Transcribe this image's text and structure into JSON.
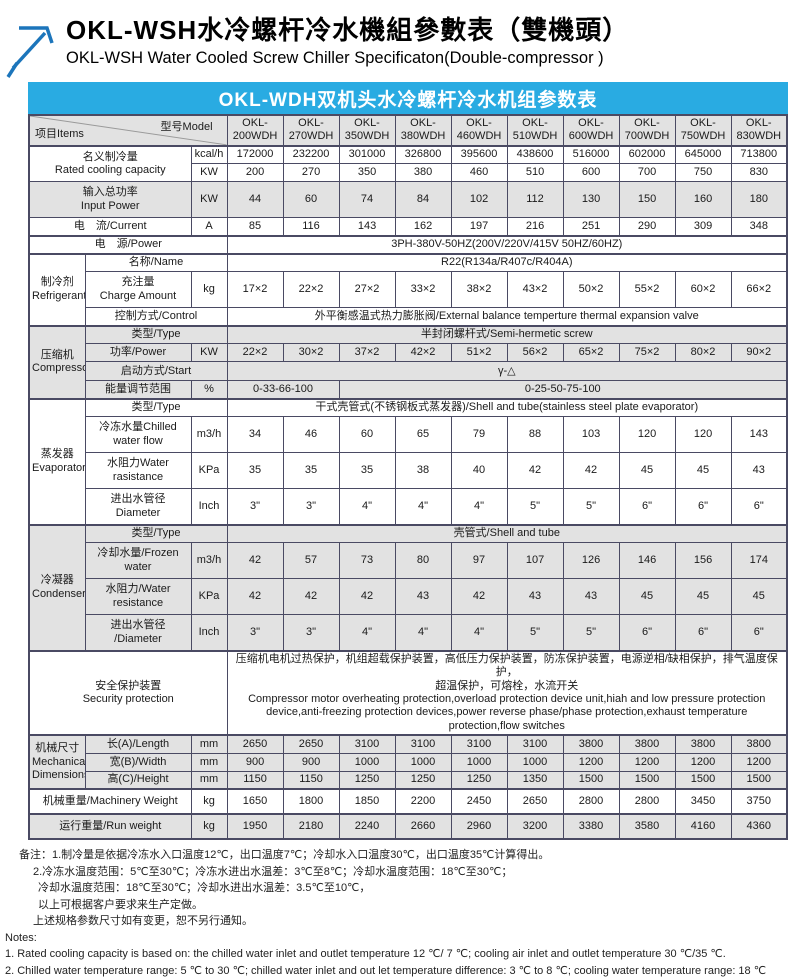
{
  "header": {
    "title_zh": "OKL-WSH水冷螺杆冷水機組參數表（雙機頭）",
    "title_en": "OKL-WSH Water Cooled Screw Chiller Specificaton(Double-compressor )",
    "logo_icon": "arrow-up-right-icon"
  },
  "banner": {
    "text": "OKL-WDH双机头水冷螺杆冷水机组参数表",
    "bg": "#29abe2"
  },
  "colors": {
    "accent": "#29abe2",
    "logo_blue": "#1c75bb",
    "grid": "#4a4a63",
    "shade": "#e2e2e2"
  },
  "table": {
    "corner": {
      "items": "项目Items",
      "model": "型号Model"
    },
    "model_prefix": "OKL-",
    "models": [
      "200WDH",
      "270WDH",
      "350WDH",
      "380WDH",
      "460WDH",
      "510WDH",
      "600WDH",
      "700WDH",
      "750WDH",
      "830WDH"
    ],
    "rows": [
      {
        "name": "rated-cooling-capacity-kcalh",
        "shaded": false,
        "thick": true,
        "h": 18,
        "cells": [
          {
            "t": "名义制冷量\nRated cooling capacity",
            "k": "label",
            "cs": 2,
            "rs": 2
          },
          {
            "t": "kcal/h",
            "k": "unit"
          }
        ],
        "vals": [
          "172000",
          "232200",
          "301000",
          "326800",
          "395600",
          "438600",
          "516000",
          "602000",
          "645000",
          "713800"
        ]
      },
      {
        "name": "rated-cooling-capacity-kw",
        "shaded": false,
        "h": 18,
        "cells": [
          {
            "t": "KW",
            "k": "unit"
          }
        ],
        "vals": [
          "200",
          "270",
          "350",
          "380",
          "460",
          "510",
          "600",
          "700",
          "750",
          "830"
        ]
      },
      {
        "name": "input-power",
        "shaded": true,
        "h": 36,
        "cells": [
          {
            "t": "输入总功率\nInput Power",
            "k": "label",
            "cs": 2
          },
          {
            "t": "KW",
            "k": "unit"
          }
        ],
        "vals": [
          "44",
          "60",
          "74",
          "84",
          "102",
          "112",
          "130",
          "150",
          "160",
          "180"
        ]
      },
      {
        "name": "current",
        "shaded": false,
        "h": 18,
        "cells": [
          {
            "t": "电　流/Current",
            "k": "label",
            "cs": 2
          },
          {
            "t": "A",
            "k": "unit"
          }
        ],
        "vals": [
          "85",
          "116",
          "143",
          "162",
          "197",
          "216",
          "251",
          "290",
          "309",
          "348"
        ]
      },
      {
        "name": "power-supply",
        "shaded": false,
        "thick": true,
        "h": 18,
        "cells": [
          {
            "t": "电　源/Power",
            "k": "label",
            "cs": 3
          },
          {
            "t": "3PH-380V-50HZ(200V/220V/415V  50HZ/60HZ)",
            "k": "wide",
            "cs": 10
          }
        ]
      },
      {
        "name": "refrigerant-name",
        "shaded": false,
        "thick": true,
        "h": 18,
        "cells": [
          {
            "t": "制冷剂\nRefrigerant",
            "k": "group",
            "rs": 3
          },
          {
            "t": "名称/Name",
            "k": "label",
            "cs": 2
          },
          {
            "t": "R22(R134a/R407c/R404A)",
            "k": "wide",
            "cs": 10
          }
        ]
      },
      {
        "name": "charge-amount",
        "shaded": false,
        "h": 36,
        "cells": [
          {
            "t": "充注量\nCharge Amount",
            "k": "label"
          },
          {
            "t": "kg",
            "k": "unit"
          }
        ],
        "vals": [
          "17×2",
          "22×2",
          "27×2",
          "33×2",
          "38×2",
          "43×2",
          "50×2",
          "55×2",
          "60×2",
          "66×2"
        ]
      },
      {
        "name": "control",
        "shaded": false,
        "h": 18,
        "cells": [
          {
            "t": "控制方式/Control",
            "k": "label",
            "cs": 2
          },
          {
            "t": "外平衡感温式热力膨胀阀/External balance temperture thermal expansion valve",
            "k": "wide",
            "cs": 10
          }
        ]
      },
      {
        "name": "compressor-type",
        "shaded": true,
        "thick": true,
        "h": 18,
        "cells": [
          {
            "t": "压缩机\nCompressor",
            "k": "group",
            "rs": 4
          },
          {
            "t": "类型/Type",
            "k": "label",
            "cs": 2
          },
          {
            "t": "半封闭螺杆式/Semi-hermetic screw",
            "k": "wide",
            "cs": 10
          }
        ]
      },
      {
        "name": "compressor-power",
        "shaded": true,
        "h": 18,
        "cells": [
          {
            "t": "功率/Power",
            "k": "label"
          },
          {
            "t": "KW",
            "k": "unit"
          }
        ],
        "vals": [
          "22×2",
          "30×2",
          "37×2",
          "42×2",
          "51×2",
          "56×2",
          "65×2",
          "75×2",
          "80×2",
          "90×2"
        ]
      },
      {
        "name": "start-mode",
        "shaded": true,
        "h": 19,
        "cells": [
          {
            "t": "启动方式/Start",
            "k": "label",
            "cs": 2
          },
          {
            "t": "γ-△",
            "k": "wide",
            "cs": 10
          }
        ]
      },
      {
        "name": "energy-regulation",
        "shaded": true,
        "h": 18,
        "cells": [
          {
            "t": "能量调节范围",
            "k": "label"
          },
          {
            "t": "%",
            "k": "unit"
          },
          {
            "t": "0-33-66-100",
            "k": "wide",
            "cs": 2
          },
          {
            "t": "0-25-50-75-100",
            "k": "wide",
            "cs": 8
          }
        ]
      },
      {
        "name": "evaporator-type",
        "shaded": false,
        "thick": true,
        "h": 18,
        "cells": [
          {
            "t": "蒸发器\nEvaporator",
            "k": "group",
            "rs": 4
          },
          {
            "t": "类型/Type",
            "k": "label",
            "cs": 2
          },
          {
            "t": "干式壳管式(不锈钢板式蒸发器)/Shell and tube(stainless steel plate evaporator)",
            "k": "wide",
            "cs": 10
          }
        ]
      },
      {
        "name": "chilled-water-flow",
        "shaded": false,
        "h": 36,
        "cells": [
          {
            "t": "冷冻水量Chilled\nwater flow",
            "k": "label"
          },
          {
            "t": "m3/h",
            "k": "unit"
          }
        ],
        "vals": [
          "34",
          "46",
          "60",
          "65",
          "79",
          "88",
          "103",
          "120",
          "120",
          "143"
        ]
      },
      {
        "name": "evap-water-resistance",
        "shaded": false,
        "h": 36,
        "cells": [
          {
            "t": "水阻力Water\nrasistance",
            "k": "label"
          },
          {
            "t": "KPa",
            "k": "unit"
          }
        ],
        "vals": [
          "35",
          "35",
          "35",
          "38",
          "40",
          "42",
          "42",
          "45",
          "45",
          "43"
        ]
      },
      {
        "name": "evap-pipe-diameter",
        "shaded": false,
        "h": 36,
        "cells": [
          {
            "t": "进出水管径\nDiameter",
            "k": "label"
          },
          {
            "t": "Inch",
            "k": "unit"
          }
        ],
        "vals": [
          "3\"",
          "3\"",
          "4\"",
          "4\"",
          "4\"",
          "5\"",
          "5\"",
          "6\"",
          "6\"",
          "6\""
        ]
      },
      {
        "name": "condenser-type",
        "shaded": true,
        "thick": true,
        "h": 18,
        "cells": [
          {
            "t": "冷凝器\nCondenser",
            "k": "group",
            "rs": 4
          },
          {
            "t": "类型/Type",
            "k": "label",
            "cs": 2
          },
          {
            "t": "壳管式/Shell and tube",
            "k": "wide",
            "cs": 10
          }
        ]
      },
      {
        "name": "cooling-water-flow",
        "shaded": true,
        "h": 36,
        "cells": [
          {
            "t": "冷却水量/Frozen\nwater",
            "k": "label"
          },
          {
            "t": "m3/h",
            "k": "unit"
          }
        ],
        "vals": [
          "42",
          "57",
          "73",
          "80",
          "97",
          "107",
          "126",
          "146",
          "156",
          "174"
        ]
      },
      {
        "name": "cond-water-resistance",
        "shaded": true,
        "h": 36,
        "cells": [
          {
            "t": "水阻力/Water\nresistance",
            "k": "label"
          },
          {
            "t": "KPa",
            "k": "unit"
          }
        ],
        "vals": [
          "42",
          "42",
          "42",
          "43",
          "42",
          "43",
          "43",
          "45",
          "45",
          "45"
        ]
      },
      {
        "name": "cond-pipe-diameter",
        "shaded": true,
        "h": 36,
        "cells": [
          {
            "t": "进出水管径\n/Diameter",
            "k": "label"
          },
          {
            "t": "Inch",
            "k": "unit"
          }
        ],
        "vals": [
          "3\"",
          "3\"",
          "4\"",
          "4\"",
          "4\"",
          "5\"",
          "5\"",
          "6\"",
          "6\"",
          "6\""
        ]
      },
      {
        "name": "security-protection",
        "shaded": false,
        "thick": true,
        "h": 82,
        "cells": [
          {
            "t": "安全保护装置\nSecurity protection",
            "k": "label",
            "cs": 3
          },
          {
            "t": "压缩机电机过热保护，机组超载保护装置，高低压力保护装置，防冻保护装置，电源逆相/缺相保护，排气温度保护，\n超温保护，可熔栓，水流开关\nCompressor motor overheating protection,overload protection device unit,hiah and low pressure protection device,anti-freezing protection devices,power reverse phase/phase protection,exhaust temperature protection,flow switches",
            "k": "security",
            "cs": 10
          }
        ]
      },
      {
        "name": "dimension-length",
        "shaded": true,
        "thick": true,
        "h": 18,
        "cells": [
          {
            "t": "机械尺寸\nMechanical\nDimensions",
            "k": "group",
            "rs": 3
          },
          {
            "t": "长(A)/Length",
            "k": "label"
          },
          {
            "t": "mm",
            "k": "unit"
          }
        ],
        "vals": [
          "2650",
          "2650",
          "3100",
          "3100",
          "3100",
          "3100",
          "3800",
          "3800",
          "3800",
          "3800"
        ]
      },
      {
        "name": "dimension-width",
        "shaded": true,
        "h": 18,
        "cells": [
          {
            "t": "宽(B)/Width",
            "k": "label"
          },
          {
            "t": "mm",
            "k": "unit"
          }
        ],
        "vals": [
          "900",
          "900",
          "1000",
          "1000",
          "1000",
          "1000",
          "1200",
          "1200",
          "1200",
          "1200"
        ]
      },
      {
        "name": "dimension-height",
        "shaded": true,
        "h": 18,
        "cells": [
          {
            "t": "高(C)/Height",
            "k": "label"
          },
          {
            "t": "mm",
            "k": "unit"
          }
        ],
        "vals": [
          "1150",
          "1150",
          "1250",
          "1250",
          "1250",
          "1350",
          "1500",
          "1500",
          "1500",
          "1500"
        ]
      },
      {
        "name": "machinery-weight",
        "shaded": false,
        "thick": true,
        "h": 25,
        "cells": [
          {
            "t": "机械重量/Machinery Weight",
            "k": "label",
            "cs": 2
          },
          {
            "t": "kg",
            "k": "unit"
          }
        ],
        "vals": [
          "1650",
          "1800",
          "1850",
          "2200",
          "2450",
          "2650",
          "2800",
          "2800",
          "3450",
          "3750"
        ]
      },
      {
        "name": "run-weight",
        "shaded": true,
        "thick": true,
        "h": 25,
        "cells": [
          {
            "t": "运行重量/Run weight",
            "k": "label",
            "cs": 2
          },
          {
            "t": "kg",
            "k": "unit"
          }
        ],
        "vals": [
          "1950",
          "2180",
          "2240",
          "2660",
          "2960",
          "3200",
          "3380",
          "3580",
          "4160",
          "4360"
        ]
      }
    ]
  },
  "notes": {
    "lines": [
      {
        "text": "备注：1.制冷量是依据冷冻水入口温度12℃，出口温度7℃；冷却水入口温度30℃，出口温度35℃计算得出。",
        "indent": 14
      },
      {
        "text": "2.冷冻水温度范围：5℃至30℃；冷冻水进出水温差：3℃至8℃；冷却水温度范围：18℃至30℃；",
        "indent": 28
      },
      {
        "text": "冷却水温度范围：18℃至30℃；冷却水进出水温差：3.5℃至10℃，",
        "indent": 33
      },
      {
        "text": "以上可根据客户要求来生产定做。",
        "indent": 33
      },
      {
        "text": "上述规格参数尺寸如有变更，恕不另行通知。",
        "indent": 28
      },
      {
        "text": "Notes:",
        "indent": 0
      },
      {
        "text": "1. Rated cooling capacity is based on: the chilled water inlet and outlet temperature 12 ℃/ 7 ℃; cooling air inlet and outlet temperature 30 ℃/35 ℃.",
        "indent": 0
      },
      {
        "text": "2. Chilled water temperature range: 5 ℃ to 30 ℃; chilled water inlet and out let temperature difference: 3 ℃ to 8 ℃; cooling water temperature range: 18 ℃",
        "indent": 0
      }
    ]
  }
}
